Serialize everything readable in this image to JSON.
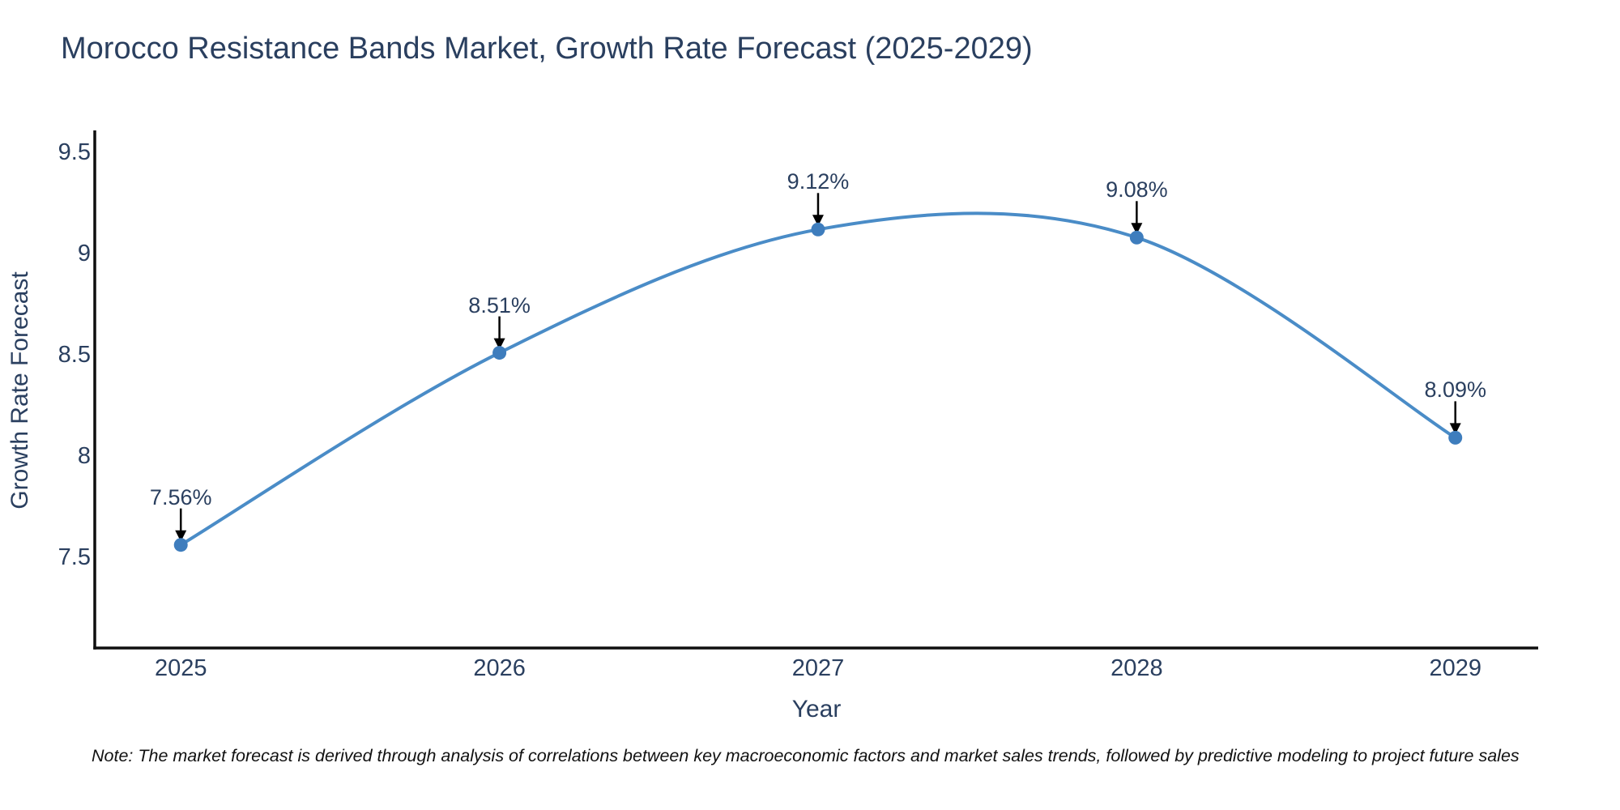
{
  "title": "Morocco Resistance Bands Market, Growth Rate Forecast (2025-2029)",
  "note": "Note: The market forecast is derived through analysis of correlations between key macroeconomic factors and market sales trends, followed by predictive modeling to project future sales",
  "colors": {
    "text": "#2a3f5f",
    "axis": "#0f0f0f",
    "line": "#4a8cc7",
    "marker": "#3e7dbd",
    "arrow": "#000000",
    "background": "#ffffff"
  },
  "chart_data": {
    "type": "line",
    "title": "Morocco Resistance Bands Market, Growth Rate Forecast (2025-2029)",
    "x": [
      2025,
      2026,
      2027,
      2028,
      2029
    ],
    "y": [
      7.56,
      8.51,
      9.12,
      9.08,
      8.09
    ],
    "point_labels": [
      "7.56%",
      "8.51%",
      "9.12%",
      "9.08%",
      "8.09%"
    ],
    "xlabel": "Year",
    "ylabel": "Growth Rate Forecast",
    "xtick_labels": [
      "2025",
      "2026",
      "2027",
      "2028",
      "2029"
    ],
    "ytick_labels": [
      "7.5",
      "8",
      "8.5",
      "9",
      "9.5"
    ],
    "ytick_values": [
      7.5,
      8,
      8.5,
      9,
      9.5
    ],
    "xlim": [
      2024.73,
      2029.26
    ],
    "ylim": [
      7.05,
      9.61
    ],
    "grid": false,
    "legend": "none",
    "line_shape": "spline",
    "line_color": "#4a8cc7",
    "marker_color": "#3e7dbd"
  }
}
